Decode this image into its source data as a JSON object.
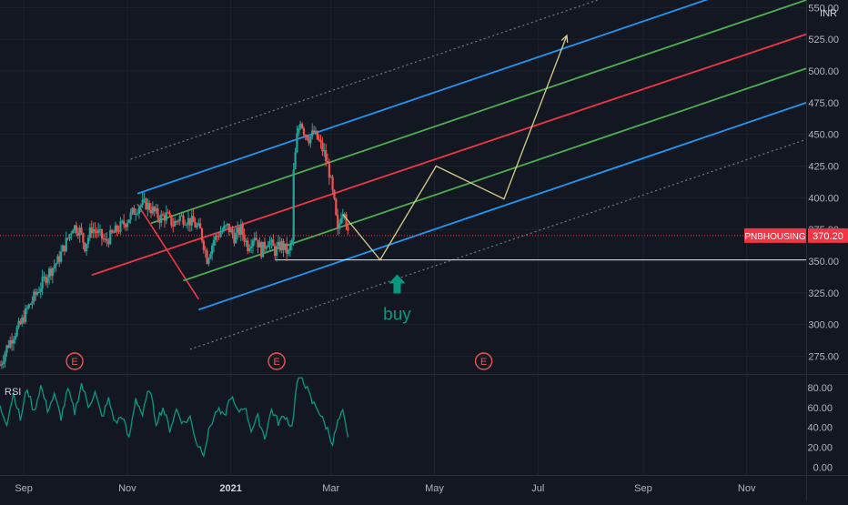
{
  "currency": "INR",
  "indicator_label": "RSI",
  "annotation_text": "buy",
  "earnings_marker": "E",
  "last_price": {
    "symbol": "PNBHOUSING",
    "value": "370.20",
    "numeric": 370.2
  },
  "colors": {
    "background": "#131722",
    "axis_text": "#b2b5be",
    "candle_up": "#26a69a",
    "candle_down": "#ef5350",
    "median_line": "#f23645",
    "inner_lines": "#4caf50",
    "outer_lines": "#2196f3",
    "dotted_lines": "#787b86",
    "projection_path": "#d6cf8a",
    "support_line": "#e0e3eb",
    "buy_arrow": "#089981",
    "rsi_line": "#089981",
    "earnings_marker": "#ef5350",
    "price_tag": "#f23645"
  },
  "chart_data": {
    "type": "candlestick",
    "price_axis": {
      "ticks": [
        "550.00",
        "525.00",
        "500.00",
        "475.00",
        "450.00",
        "425.00",
        "400.00",
        "375.00",
        "350.00",
        "325.00",
        "300.00",
        "275.00"
      ],
      "ylim": [
        261,
        556
      ]
    },
    "rsi_axis": {
      "ticks": [
        "80.00",
        "60.00",
        "40.00",
        "20.00",
        "0.00"
      ],
      "ylim": [
        -8,
        93
      ]
    },
    "time_axis": {
      "ticks": [
        "Sep",
        "Nov",
        "2021",
        "Mar",
        "May",
        "Jul",
        "Sep",
        "Nov"
      ],
      "tick_days": [
        0,
        61,
        122,
        181,
        242,
        303,
        365,
        426
      ],
      "x_range": [
        -14,
        461
      ]
    },
    "price_path": [
      [
        -14,
        268
      ],
      [
        -10,
        282
      ],
      [
        -6,
        292
      ],
      [
        -2,
        300
      ],
      [
        2,
        312
      ],
      [
        8,
        326
      ],
      [
        14,
        340
      ],
      [
        20,
        350
      ],
      [
        26,
        368
      ],
      [
        29,
        378
      ],
      [
        33,
        374
      ],
      [
        36,
        362
      ],
      [
        40,
        376
      ],
      [
        44,
        372
      ],
      [
        48,
        365
      ],
      [
        52,
        371
      ],
      [
        56,
        376
      ],
      [
        60,
        381
      ],
      [
        64,
        388
      ],
      [
        68,
        394
      ],
      [
        72,
        395
      ],
      [
        76,
        390
      ],
      [
        80,
        384
      ],
      [
        84,
        386
      ],
      [
        88,
        379
      ],
      [
        92,
        385
      ],
      [
        96,
        383
      ],
      [
        100,
        380
      ],
      [
        104,
        374
      ],
      [
        107,
        358
      ],
      [
        108,
        352
      ],
      [
        112,
        367
      ],
      [
        116,
        373
      ],
      [
        120,
        377
      ],
      [
        124,
        369
      ],
      [
        128,
        375
      ],
      [
        132,
        362
      ],
      [
        136,
        371
      ],
      [
        140,
        358
      ],
      [
        144,
        367
      ],
      [
        148,
        358
      ],
      [
        152,
        363
      ],
      [
        156,
        356
      ],
      [
        158,
        366
      ],
      [
        159,
        420
      ],
      [
        161,
        448
      ],
      [
        163,
        462
      ],
      [
        165,
        453
      ],
      [
        168,
        447
      ],
      [
        171,
        451
      ],
      [
        174,
        444
      ],
      [
        177,
        435
      ],
      [
        180,
        420
      ],
      [
        183,
        395
      ],
      [
        185,
        372
      ],
      [
        187,
        388
      ],
      [
        189,
        392
      ],
      [
        191,
        370
      ]
    ],
    "rsi_path": [
      [
        -14,
        60
      ],
      [
        -10,
        45
      ],
      [
        -6,
        75
      ],
      [
        -2,
        48
      ],
      [
        2,
        80
      ],
      [
        6,
        55
      ],
      [
        10,
        82
      ],
      [
        14,
        58
      ],
      [
        18,
        72
      ],
      [
        22,
        50
      ],
      [
        26,
        78
      ],
      [
        30,
        55
      ],
      [
        34,
        84
      ],
      [
        38,
        62
      ],
      [
        42,
        75
      ],
      [
        46,
        50
      ],
      [
        50,
        68
      ],
      [
        54,
        44
      ],
      [
        58,
        52
      ],
      [
        62,
        28
      ],
      [
        66,
        70
      ],
      [
        70,
        52
      ],
      [
        74,
        80
      ],
      [
        78,
        45
      ],
      [
        82,
        60
      ],
      [
        86,
        38
      ],
      [
        90,
        58
      ],
      [
        94,
        44
      ],
      [
        98,
        50
      ],
      [
        102,
        24
      ],
      [
        106,
        15
      ],
      [
        110,
        42
      ],
      [
        114,
        58
      ],
      [
        118,
        50
      ],
      [
        122,
        72
      ],
      [
        126,
        55
      ],
      [
        130,
        62
      ],
      [
        134,
        38
      ],
      [
        138,
        50
      ],
      [
        142,
        30
      ],
      [
        146,
        58
      ],
      [
        150,
        45
      ],
      [
        154,
        52
      ],
      [
        158,
        40
      ],
      [
        161,
        85
      ],
      [
        164,
        92
      ],
      [
        167,
        78
      ],
      [
        170,
        65
      ],
      [
        173,
        60
      ],
      [
        176,
        48
      ],
      [
        179,
        38
      ],
      [
        182,
        24
      ],
      [
        185,
        45
      ],
      [
        188,
        55
      ],
      [
        191,
        28
      ]
    ],
    "pitchfork": {
      "pivot_a": {
        "day": 40,
        "price": 339
      },
      "pivot_b": {
        "day": 67,
        "price": 395
      },
      "pivot_c": {
        "day": 103,
        "price": 320
      },
      "median_end": {
        "day": 461,
        "price": 529
      },
      "inner_offset_price": 27,
      "outer_offset_price": 54,
      "dotted_offset_price": 83,
      "start_day": 48
    },
    "projection_path": [
      {
        "day": 188,
        "price": 387
      },
      {
        "day": 210,
        "price": 351
      },
      {
        "day": 243,
        "price": 425
      },
      {
        "day": 283,
        "price": 399
      },
      {
        "day": 320,
        "price": 528
      }
    ],
    "support_level": {
      "price": 351,
      "from_day": 148,
      "to_day": 461
    },
    "buy_arrow": {
      "day": 220,
      "price": 331
    },
    "earnings_markers_days": [
      30,
      149,
      271
    ],
    "last_price_value": 370.2
  }
}
